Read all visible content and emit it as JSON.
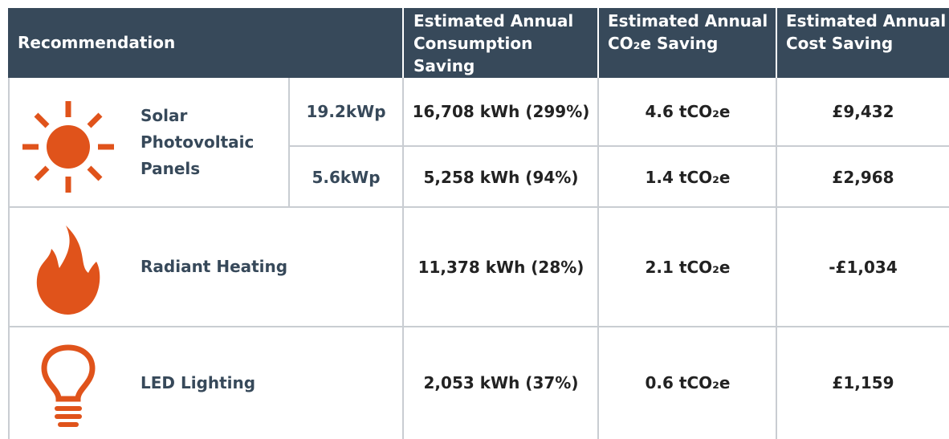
{
  "header": [
    "Recommendation",
    "Estimated Annual Consumption Saving",
    "Estimated Annual CO₂e Saving",
    "Estimated Annual Cost Saving"
  ],
  "rows": [
    {
      "name": "Solar Photovoltaic Panels",
      "options": [
        {
          "size": "19.2kWp",
          "consumption": "16,708 kWh (299%)",
          "co2": "4.6 tCO₂e",
          "cost": "£9,432"
        },
        {
          "size": "5.6kWp",
          "consumption": "5,258 kWh (94%)",
          "co2": "1.4 tCO₂e",
          "cost": "£2,968"
        }
      ]
    },
    {
      "name": "Radiant Heating",
      "options": [
        {
          "consumption": "11,378 kWh (28%)",
          "co2": "2.1 tCO₂e",
          "cost": "-£1,034"
        }
      ]
    },
    {
      "name": "LED Lighting",
      "options": [
        {
          "consumption": "2,053 kWh (37%)",
          "co2": "0.6 tCO₂e",
          "cost": "£1,159"
        }
      ]
    }
  ]
}
